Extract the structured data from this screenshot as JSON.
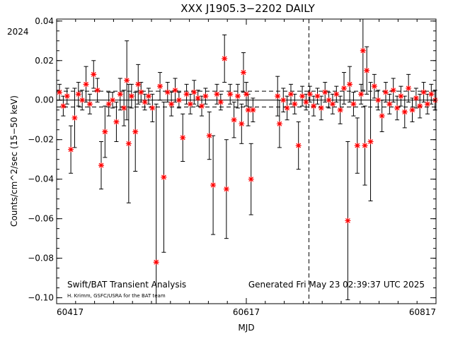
{
  "chart_data": {
    "type": "scatter",
    "title": "XXX J1905.3−2202 DAILY",
    "xlabel": "MJD",
    "ylabel": "Counts/cm^2/sec (15−50 keV)",
    "year_label": "2024",
    "xlim": [
      60417,
      60817
    ],
    "ylim": [
      -0.103,
      0.041
    ],
    "x_ticks": [
      "60417",
      "60617",
      "60817"
    ],
    "y_ticks": [
      "0.04",
      "0.02",
      "0.00",
      "−0.02",
      "−0.04",
      "−0.06",
      "−0.08",
      "−0.10"
    ],
    "y_tick_values": [
      0.04,
      0.02,
      0.0,
      -0.02,
      -0.04,
      -0.06,
      -0.08,
      -0.1
    ],
    "footer_left": "Swift/BAT Transient Analysis",
    "footer_right": "Generated Fri May 23 02:39:37 UTC 2025",
    "credit": "H. Krimm, GSFC/USRA for the BAT team",
    "reference_lines": {
      "y_solid": 0.0,
      "y_dashed": [
        0.0045,
        -0.0035
      ],
      "x_dashed": 60683
    },
    "colors": {
      "points": "#ff0000",
      "errorbars": "#000000",
      "axes": "#000000"
    },
    "grid": false,
    "series": [
      {
        "points": [
          [
            60420,
            0.004,
            0.004
          ],
          [
            60424,
            -0.003,
            0.005
          ],
          [
            60428,
            0.002,
            0.004
          ],
          [
            60432,
            -0.025,
            0.012
          ],
          [
            60436,
            -0.009,
            0.015
          ],
          [
            60440,
            0.003,
            0.006
          ],
          [
            60444,
            0.0,
            0.005
          ],
          [
            60448,
            0.008,
            0.009
          ],
          [
            60452,
            -0.002,
            0.005
          ],
          [
            60456,
            0.013,
            0.007
          ],
          [
            60460,
            0.005,
            0.006
          ],
          [
            60464,
            -0.033,
            0.012
          ],
          [
            60468,
            -0.016,
            0.013
          ],
          [
            60472,
            -0.002,
            0.006
          ],
          [
            60476,
            0.0,
            0.004
          ],
          [
            60480,
            -0.011,
            0.01
          ],
          [
            60484,
            0.003,
            0.008
          ],
          [
            60488,
            -0.004,
            0.009
          ],
          [
            60491,
            0.01,
            0.02
          ],
          [
            60493,
            -0.022,
            0.03
          ],
          [
            60496,
            0.002,
            0.006
          ],
          [
            60500,
            -0.016,
            0.02
          ],
          [
            60503,
            0.008,
            0.01
          ],
          [
            60506,
            0.004,
            0.005
          ],
          [
            60510,
            -0.001,
            0.004
          ],
          [
            60514,
            0.002,
            0.004
          ],
          [
            60518,
            -0.004,
            0.007
          ],
          [
            60522,
            -0.082,
            0.08
          ],
          [
            60526,
            0.007,
            0.007
          ],
          [
            60530,
            -0.039,
            0.038
          ],
          [
            60534,
            0.004,
            0.005
          ],
          [
            60538,
            -0.002,
            0.006
          ],
          [
            60542,
            0.005,
            0.006
          ],
          [
            60546,
            0.0,
            0.004
          ],
          [
            60550,
            -0.019,
            0.012
          ],
          [
            60554,
            0.003,
            0.005
          ],
          [
            60558,
            -0.002,
            0.005
          ],
          [
            60562,
            0.004,
            0.006
          ],
          [
            60566,
            0.001,
            0.004
          ],
          [
            60570,
            -0.003,
            0.005
          ],
          [
            60574,
            0.002,
            0.004
          ],
          [
            60578,
            -0.018,
            0.012
          ],
          [
            60582,
            -0.043,
            0.025
          ],
          [
            60586,
            0.003,
            0.005
          ],
          [
            60590,
            -0.001,
            0.004
          ],
          [
            60594,
            0.021,
            0.012
          ],
          [
            60596,
            -0.045,
            0.025
          ],
          [
            60600,
            0.003,
            0.005
          ],
          [
            60604,
            -0.01,
            0.009
          ],
          [
            60608,
            0.002,
            0.006
          ],
          [
            60612,
            -0.012,
            0.01
          ],
          [
            60614,
            0.014,
            0.01
          ],
          [
            60617,
            0.003,
            0.006
          ],
          [
            60619,
            -0.005,
            0.008
          ],
          [
            60622,
            -0.04,
            0.018
          ],
          [
            60624,
            -0.005,
            0.006
          ],
          [
            60650,
            0.002,
            0.01
          ],
          [
            60652,
            -0.012,
            0.012
          ],
          [
            60656,
            0.0,
            0.006
          ],
          [
            60660,
            -0.004,
            0.006
          ],
          [
            60664,
            0.003,
            0.005
          ],
          [
            60668,
            -0.002,
            0.005
          ],
          [
            60672,
            -0.023,
            0.012
          ],
          [
            60676,
            0.002,
            0.005
          ],
          [
            60680,
            -0.001,
            0.004
          ],
          [
            60684,
            0.003,
            0.004
          ],
          [
            60688,
            -0.003,
            0.005
          ],
          [
            60692,
            0.002,
            0.004
          ],
          [
            60696,
            -0.004,
            0.006
          ],
          [
            60700,
            0.004,
            0.005
          ],
          [
            60704,
            0.0,
            0.004
          ],
          [
            60708,
            -0.002,
            0.005
          ],
          [
            60712,
            0.003,
            0.004
          ],
          [
            60716,
            -0.005,
            0.007
          ],
          [
            60720,
            0.006,
            0.008
          ],
          [
            60724,
            -0.061,
            0.04
          ],
          [
            60726,
            0.008,
            0.009
          ],
          [
            60730,
            -0.002,
            0.006
          ],
          [
            60734,
            -0.023,
            0.014
          ],
          [
            60738,
            0.003,
            0.005
          ],
          [
            60740,
            0.025,
            0.02
          ],
          [
            60742,
            -0.023,
            0.02
          ],
          [
            60744,
            0.015,
            0.012
          ],
          [
            60748,
            -0.021,
            0.03
          ],
          [
            60752,
            0.007,
            0.006
          ],
          [
            60756,
            0.0,
            0.005
          ],
          [
            60760,
            -0.008,
            0.008
          ],
          [
            60764,
            0.004,
            0.005
          ],
          [
            60768,
            -0.002,
            0.005
          ],
          [
            60772,
            0.005,
            0.006
          ],
          [
            60776,
            -0.004,
            0.006
          ],
          [
            60780,
            0.002,
            0.005
          ],
          [
            60784,
            -0.006,
            0.008
          ],
          [
            60788,
            0.006,
            0.007
          ],
          [
            60792,
            -0.005,
            0.006
          ],
          [
            60796,
            0.001,
            0.005
          ],
          [
            60800,
            -0.003,
            0.006
          ],
          [
            60804,
            0.004,
            0.005
          ],
          [
            60808,
            -0.002,
            0.005
          ],
          [
            60812,
            0.003,
            0.005
          ],
          [
            60816,
            0.0,
            0.005
          ]
        ]
      }
    ]
  }
}
